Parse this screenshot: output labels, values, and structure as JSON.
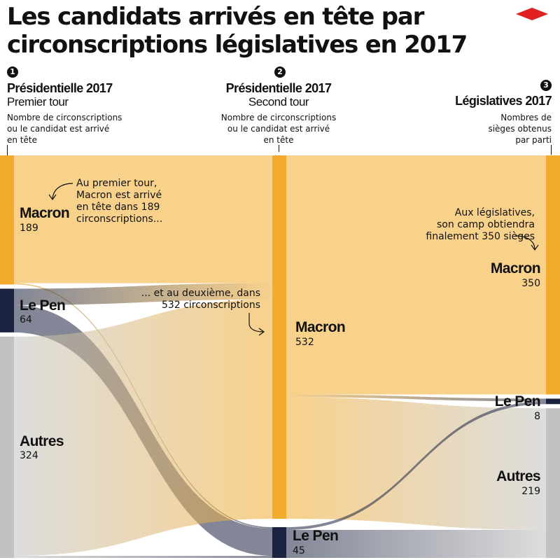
{
  "title": "Les candidats arrivés en tête par circonscriptions législatives en 2017",
  "chart_data": {
    "type": "sankey",
    "stages": [
      {
        "number": "1",
        "title": "Présidentielle 2017",
        "subtitle": "Premier tour",
        "description": "Nombre de circonscriptions\nou le candidat est arrivé\nen tête"
      },
      {
        "number": "2",
        "title": "Présidentielle 2017",
        "subtitle": "Second tour",
        "description": "Nombre de circonscriptions\nou le candidat est arrivé\nen tête"
      },
      {
        "number": "3",
        "title": "Législatives 2017",
        "subtitle": "",
        "description": "Nombres de\nsièges obtenus\npar parti"
      }
    ],
    "nodes": [
      {
        "stage": 0,
        "label": "Macron",
        "value": 189,
        "color": "#f2ab2c"
      },
      {
        "stage": 0,
        "label": "Le Pen",
        "value": 64,
        "color": "#1c2340"
      },
      {
        "stage": 0,
        "label": "Autres",
        "value": 324,
        "color": "#c2c2c2"
      },
      {
        "stage": 1,
        "label": "Macron",
        "value": 532,
        "color": "#f2ab2c"
      },
      {
        "stage": 1,
        "label": "Le Pen",
        "value": 45,
        "color": "#1c2340"
      },
      {
        "stage": 2,
        "label": "Macron",
        "value": 350,
        "color": "#f2ab2c"
      },
      {
        "stage": 2,
        "label": "Le Pen",
        "value": 8,
        "color": "#1c2340"
      },
      {
        "stage": 2,
        "label": "Autres",
        "value": 219,
        "color": "#c2c2c2"
      }
    ],
    "links": [
      {
        "from": "Macron",
        "to": "Macron",
        "stage": 0,
        "value": 187
      },
      {
        "from": "Macron",
        "to": "Le Pen",
        "stage": 0,
        "value": 2
      },
      {
        "from": "Le Pen",
        "to": "Macron",
        "stage": 0,
        "value": 24
      },
      {
        "from": "Le Pen",
        "to": "Le Pen",
        "stage": 0,
        "value": 40
      },
      {
        "from": "Autres",
        "to": "Macron",
        "stage": 0,
        "value": 321
      },
      {
        "from": "Autres",
        "to": "Le Pen",
        "stage": 0,
        "value": 3
      },
      {
        "from": "Macron",
        "to": "Macron",
        "stage": 1,
        "value": 350
      },
      {
        "from": "Macron",
        "to": "Le Pen",
        "stage": 1,
        "value": 4
      },
      {
        "from": "Macron",
        "to": "Autres",
        "stage": 1,
        "value": 178
      },
      {
        "from": "Le Pen",
        "to": "Le Pen",
        "stage": 1,
        "value": 4
      },
      {
        "from": "Le Pen",
        "to": "Autres",
        "stage": 1,
        "value": 41
      }
    ],
    "colors": {
      "Macron": "#f2ab2c",
      "Le Pen": "#1c2340",
      "Autres": "#c2c2c2"
    }
  },
  "annotations": [
    {
      "text": "Au premier tour,\nMacron est arrivé\nen tête dans 189\ncirconscriptions..."
    },
    {
      "text": "... et au deuxième, dans\n532 circonscriptions"
    },
    {
      "text": "Aux législatives,\nson camp obtiendra\nfinalement 350 sièges"
    }
  ],
  "logo": {
    "name": "diamond-logo-icon",
    "color": "#e0211f"
  }
}
